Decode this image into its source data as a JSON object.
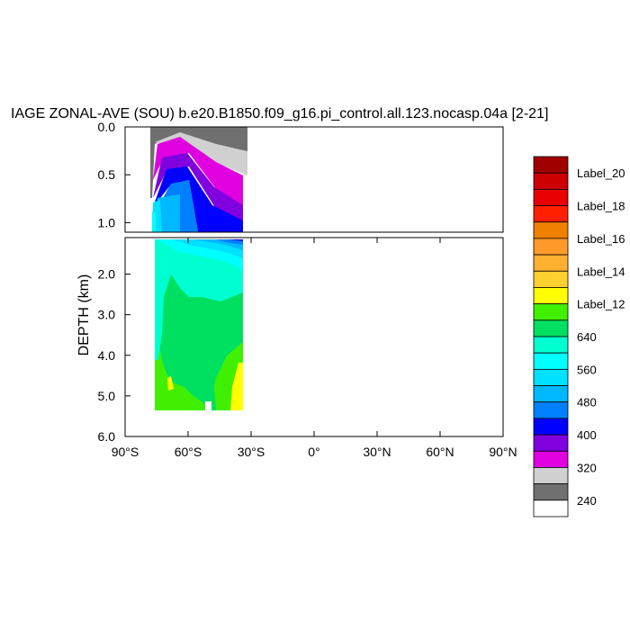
{
  "chart_data": {
    "type": "heatmap",
    "title": "IAGE ZONAL-AVE (SOU) b.e20.B1850.f09_g16.pi_control.all.123.nocasp.04a [2-21]",
    "ylabel": "DEPTH (km)",
    "xlabel": "",
    "x_ticks": [
      "90°S",
      "60°S",
      "30°S",
      "0°",
      "30°N",
      "60°N",
      "90°N"
    ],
    "xlim": [
      -90,
      90
    ],
    "upper_panel": {
      "ylim": [
        0.0,
        1.1
      ],
      "y_ticks": [
        "0.0",
        "0.5",
        "1.0"
      ],
      "y_tick_values": [
        0.0,
        0.5,
        1.0
      ]
    },
    "lower_panel": {
      "ylim": [
        1.1,
        6.0
      ],
      "y_ticks": [
        "2.0",
        "3.0",
        "4.0",
        "5.0",
        "6.0"
      ],
      "y_tick_values": [
        2.0,
        3.0,
        4.0,
        5.0,
        6.0
      ]
    },
    "colorbar": {
      "colors": [
        "#a00000",
        "#cc0000",
        "#e80000",
        "#ff2000",
        "#f08000",
        "#ff9a2a",
        "#ffb030",
        "#ffd030",
        "#ffff00",
        "#40f000",
        "#00e060",
        "#00ffd0",
        "#00ffff",
        "#00e0ff",
        "#00b8ff",
        "#0080ff",
        "#0000ff",
        "#8000e0",
        "#e000e0",
        "#d0d0d0",
        "#707070",
        "#ffffff"
      ],
      "labels": [
        "Label_20",
        "Label_18",
        "Label_16",
        "Label_14",
        "Label_12",
        "640",
        "560",
        "480",
        "400",
        "320",
        "240"
      ]
    },
    "data_extent": {
      "lat": [
        -75,
        -35
      ]
    }
  }
}
